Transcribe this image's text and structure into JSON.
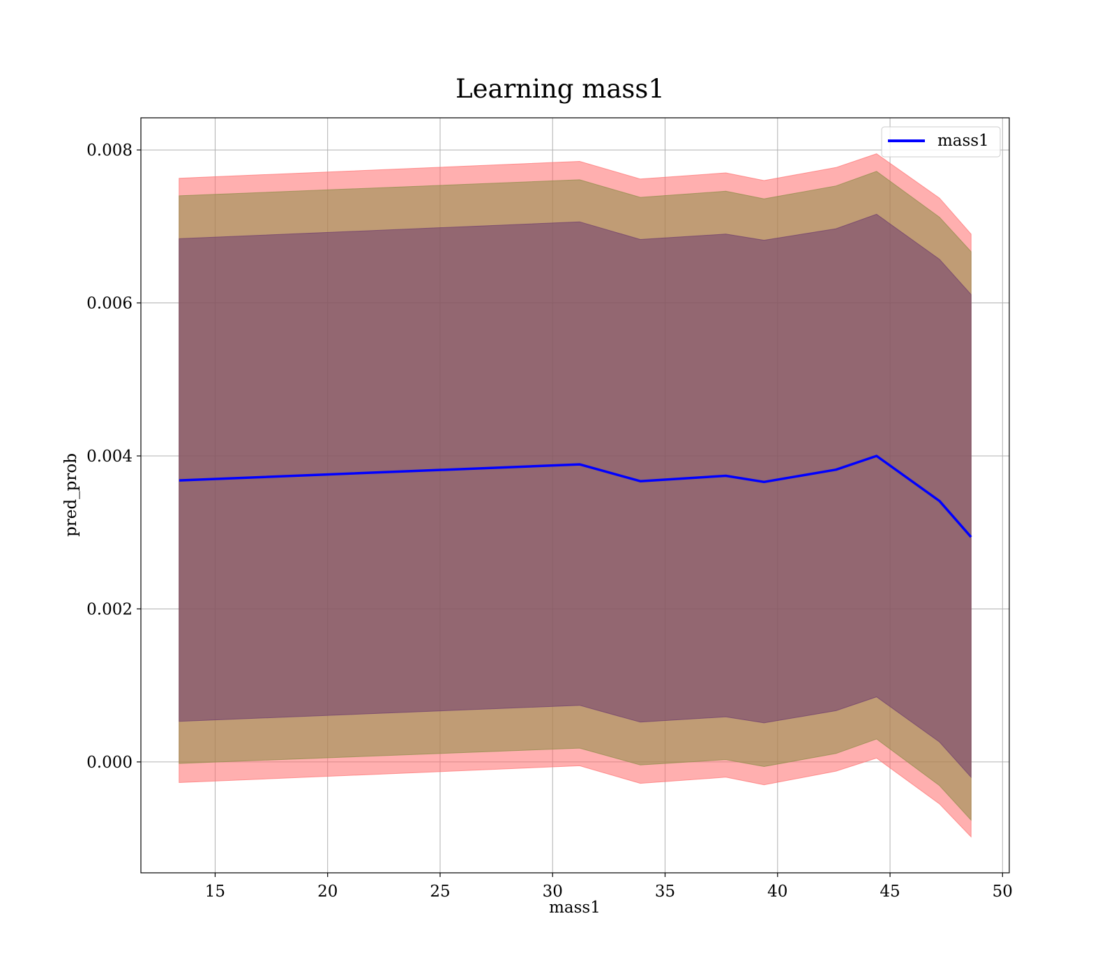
{
  "chart_data": {
    "type": "line",
    "title": "Learning mass1",
    "xlabel": "mass1",
    "ylabel": "pred_prob",
    "xlim": [
      11.7,
      50.3
    ],
    "ylim": [
      -0.00145,
      0.00842
    ],
    "xticks": [
      15,
      20,
      25,
      30,
      35,
      40,
      45,
      50
    ],
    "yticks": [
      0.0,
      0.002,
      0.004,
      0.006,
      0.008
    ],
    "ytick_labels": [
      "0.000",
      "0.002",
      "0.004",
      "0.006",
      "0.008"
    ],
    "grid": true,
    "legend": {
      "position": "top-right",
      "entries": [
        "mass1"
      ]
    },
    "x": [
      13.4,
      31.2,
      33.9,
      37.7,
      39.4,
      42.6,
      44.4,
      47.2,
      48.6
    ],
    "series": [
      {
        "name": "mass1",
        "color": "#0000ff",
        "values": [
          0.00368,
          0.00389,
          0.00367,
          0.00374,
          0.00366,
          0.00382,
          0.004,
          0.00341,
          0.00294
        ]
      }
    ],
    "bands": [
      {
        "color": "#ff6e6e",
        "lower": [
          -0.00027,
          -5e-05,
          -0.00028,
          -0.0002,
          -0.0003,
          -0.00012,
          5e-05,
          -0.00055,
          -0.00098
        ],
        "upper": [
          0.00763,
          0.00785,
          0.00762,
          0.0077,
          0.0076,
          0.00777,
          0.00795,
          0.00737,
          0.0069
        ]
      },
      {
        "color": "#8c8c46",
        "lower": [
          -2e-05,
          0.00018,
          -4e-05,
          3e-05,
          -6e-05,
          0.00011,
          0.0003,
          -0.00031,
          -0.00076
        ],
        "upper": [
          0.0074,
          0.00761,
          0.00738,
          0.00746,
          0.00736,
          0.00753,
          0.00772,
          0.00712,
          0.00667
        ]
      },
      {
        "color": "#6e3c6e",
        "lower": [
          0.00053,
          0.00074,
          0.00052,
          0.00059,
          0.00051,
          0.00067,
          0.00085,
          0.00026,
          -0.0002
        ],
        "upper": [
          0.00684,
          0.00706,
          0.00683,
          0.0069,
          0.00682,
          0.00697,
          0.00716,
          0.00657,
          0.00611
        ]
      }
    ]
  }
}
